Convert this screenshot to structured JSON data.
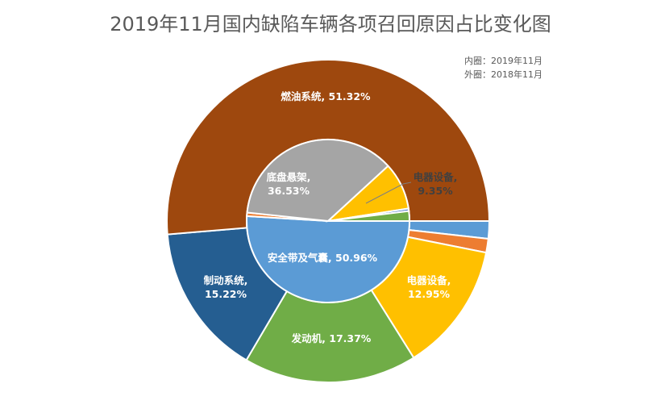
{
  "chart_data": {
    "type": "donut",
    "title": "2019年11月国内缺陷车辆各项召回原因占比变化图",
    "legend": [
      "内圈：2019年11月",
      "外圈：2018年11月"
    ],
    "inner": {
      "period": "2019年11月",
      "slices": [
        {
          "name": "安全带及气囊",
          "value": 50.96,
          "label": "安全带及气囊, 50.96%",
          "color": "#5B9BD5"
        },
        {
          "name": "",
          "value": 0.7,
          "label": "",
          "color": "#ED7D31"
        },
        {
          "name": "底盘悬架",
          "value": 36.53,
          "label": "底盘悬架, 36.53%",
          "color": "#A5A5A5"
        },
        {
          "name": "电器设备",
          "value": 9.35,
          "label": "电器设备, 9.35%",
          "color": "#FFC000"
        },
        {
          "name": "",
          "value": 0.5,
          "label": "",
          "color": "#4472C4"
        },
        {
          "name": "",
          "value": 1.96,
          "label": "",
          "color": "#70AD47"
        }
      ]
    },
    "outer": {
      "period": "2018年11月",
      "slices": [
        {
          "name": "",
          "value": 1.75,
          "label": "",
          "color": "#5B9BD5"
        },
        {
          "name": "",
          "value": 1.39,
          "label": "",
          "color": "#ED7D31"
        },
        {
          "name": "电器设备",
          "value": 12.95,
          "label": "电器设备, 12.95%",
          "color": "#FFC000"
        },
        {
          "name": "发动机",
          "value": 17.37,
          "label": "发动机, 17.37%",
          "color": "#70AD47"
        },
        {
          "name": "制动系统",
          "value": 15.22,
          "label": "制动系统, 15.22%",
          "color": "#255E91"
        },
        {
          "name": "燃油系统",
          "value": 51.32,
          "label": "燃油系统, 51.32%",
          "color": "#9E480E"
        }
      ]
    }
  }
}
